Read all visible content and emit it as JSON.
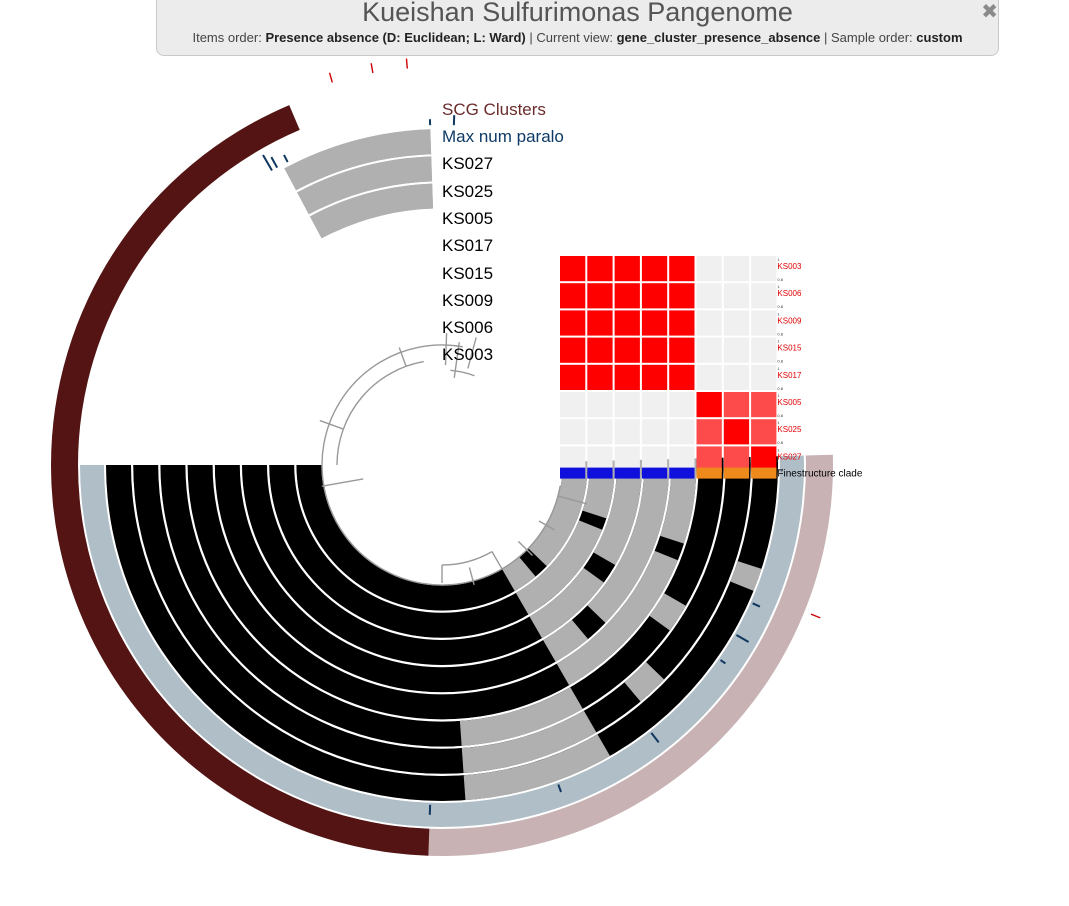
{
  "header": {
    "title": "Kueishan Sulfurimonas Pangenome",
    "items_order_label": "Items order:",
    "items_order_value": "Presence absence (D: Euclidean; L: Ward)",
    "current_view_label": "| Current view:",
    "current_view_value": "gene_cluster_presence_absence",
    "sample_order_label": "| Sample order:",
    "sample_order_value": "custom",
    "close_icon": "times-icon"
  },
  "layers": {
    "scg_label": "SCG Clusters",
    "paralog_label": "Max num paralo",
    "genomes": [
      "KS027",
      "KS025",
      "KS005",
      "KS017",
      "KS015",
      "KS009",
      "KS006",
      "KS003"
    ]
  },
  "heatmap": {
    "rows": [
      "KS003",
      "KS006",
      "KS009",
      "KS015",
      "KS017",
      "KS005",
      "KS025",
      "KS027"
    ],
    "clade_label": "Finestructure clade",
    "clade_colors": [
      "#1010dd",
      "#1010dd",
      "#1010dd",
      "#1010dd",
      "#1010dd",
      "#ee8a1c",
      "#ee8a1c",
      "#ee8a1c"
    ],
    "tick_top": "1",
    "tick_bottom": "0.8"
  },
  "colors": {
    "scg_dark": "#541414",
    "scg_light": "#c8b2b4",
    "paralog_ring": "#b0bec8",
    "paralog_bar": "#10375f",
    "present": "#000000",
    "absent": "#b0b0b0",
    "heat_strong": "#ff0000",
    "heat_mid": "#fd4b4b",
    "heat_empty": "#f0f0f0"
  }
}
